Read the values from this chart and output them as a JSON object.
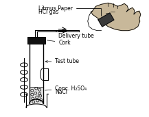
{
  "bg_color": "#ffffff",
  "line_color": "#000000",
  "label_litmus_paper": "Litmus Paper",
  "label_hcl_gas": "HCl gas",
  "label_delivery_tube": "Delivery tube",
  "label_cork": "Cork",
  "label_test_tube": "Test tube",
  "label_conc": "Conc. H₂SO₄",
  "label_nacl": "NaCl",
  "font_size": 5.5,
  "fig_width": 2.17,
  "fig_height": 1.71,
  "dpi": 100
}
